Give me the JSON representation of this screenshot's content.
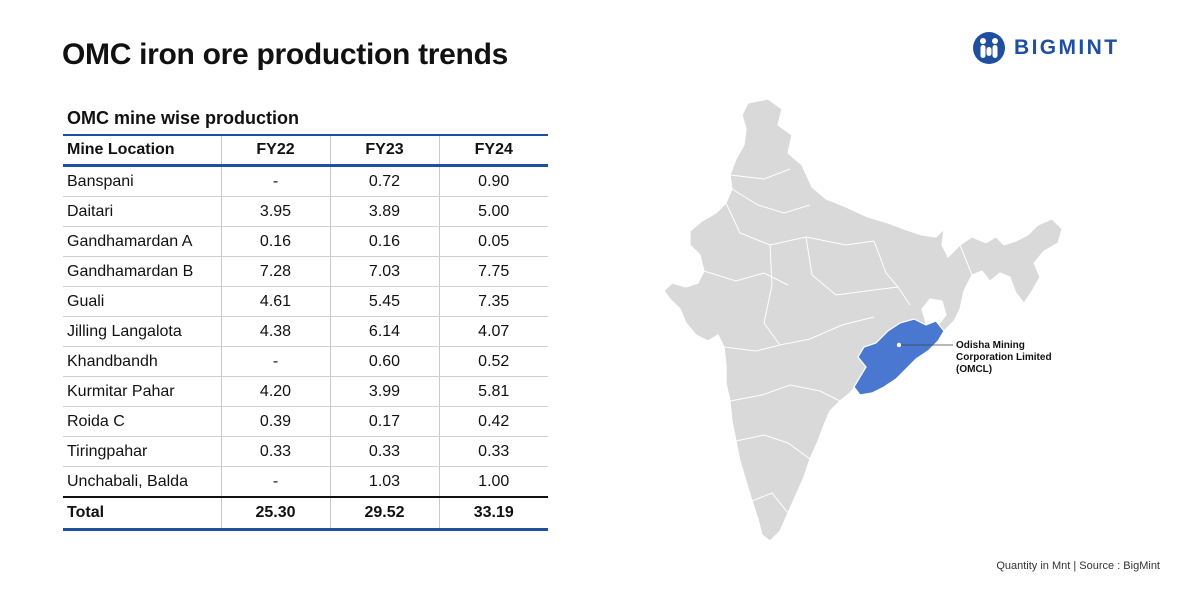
{
  "title": "OMC iron ore production trends",
  "brand": {
    "name": "BIGMINT",
    "color": "#1f4f9e"
  },
  "chart_data": {
    "type": "table",
    "title": "OMC mine wise production",
    "columns": [
      "Mine Location",
      "FY22",
      "FY23",
      "FY24"
    ],
    "rows": [
      [
        "Banspani",
        "-",
        "0.72",
        "0.90"
      ],
      [
        "Daitari",
        "3.95",
        "3.89",
        "5.00"
      ],
      [
        "Gandhamardan A",
        "0.16",
        "0.16",
        "0.05"
      ],
      [
        "Gandhamardan B",
        "7.28",
        "7.03",
        "7.75"
      ],
      [
        "Guali",
        "4.61",
        "5.45",
        "7.35"
      ],
      [
        "Jilling Langalota",
        "4.38",
        "6.14",
        "4.07"
      ],
      [
        "Khandbandh",
        "-",
        "0.60",
        "0.52"
      ],
      [
        "Kurmitar Pahar",
        "4.20",
        "3.99",
        "5.81"
      ],
      [
        "Roida C",
        "0.39",
        "0.17",
        "0.42"
      ],
      [
        "Tiringpahar",
        "0.33",
        "0.33",
        "0.33"
      ],
      [
        "Unchabali, Balda",
        "-",
        "1.03",
        "1.00"
      ]
    ],
    "total": [
      "Total",
      "25.30",
      "29.52",
      "33.19"
    ]
  },
  "map": {
    "callout_lines": [
      "Odisha Mining",
      "Corporation Limited",
      "(OMCL)"
    ],
    "base_color": "#d9d9d9",
    "highlight_color": "#4a78d0"
  },
  "footer": "Quantity in Mnt | Source : BigMint"
}
